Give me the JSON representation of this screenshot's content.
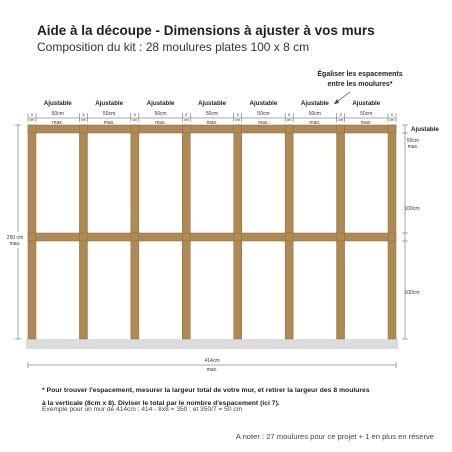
{
  "header": {
    "title": "Aide à la découpe - Dimensions à ajuster à vos murs",
    "subtitle": "Composition du kit : 28 moulures plates 100 x 8 cm"
  },
  "callout": {
    "line1": "Égaliser les espacements",
    "line2": "entre les moulures*"
  },
  "labels": {
    "ajustable": "Ajustable",
    "gap_value": "50cm",
    "gap_unit": "max.",
    "post_width": "8 cm",
    "top_value": "50cm",
    "top_unit": "max.",
    "mid_section": "100cm",
    "bottom_section": "100cm",
    "height_value": "250 cm",
    "height_unit": "max.",
    "width_value": "414cm",
    "width_unit": "max."
  },
  "colors": {
    "wood": "#b08a55",
    "wood_edge": "#8a6a3c",
    "floor": "#dcdcdc",
    "dim_line": "#555555"
  },
  "footnotes": {
    "line1": "* Pour trouver l'espacement, mesurer la largeur total de votre mur, et retirer la largeur des 8 moulures",
    "line2": "à la verticale (8cm x 8). Diviser le total par le nombre d'espacement (ici 7).",
    "example": "Exemple pour un mur de 414cm : 414 - 8x8 = 350 ; et 350/7 = 50 cm",
    "note": "A noter : 27  moulures pour ce projet + 1 en plus en réserve"
  }
}
